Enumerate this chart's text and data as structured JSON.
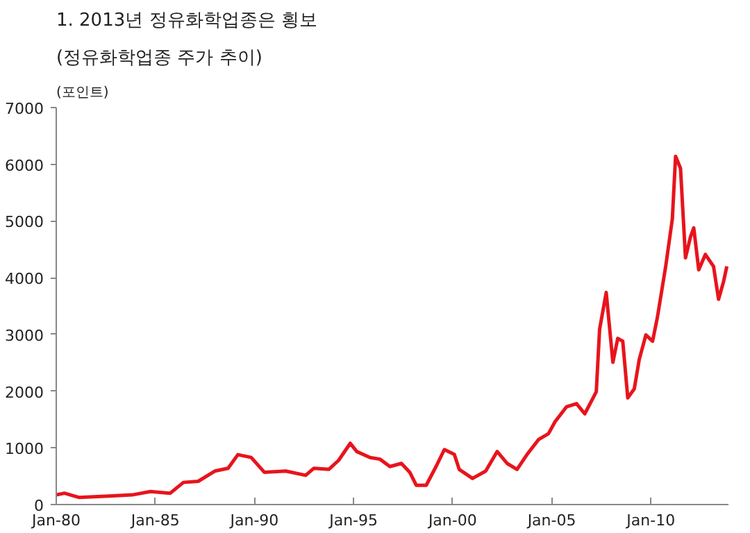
{
  "chart_data": {
    "type": "line",
    "title": "1. 2013년  정유화학업종은  횡보",
    "subtitle": "(정유화학업종  주가  추이)",
    "ylabel": "(포인트)",
    "x": [
      "1980-01",
      "1980-06",
      "1981-03",
      "1982-09",
      "1983-11",
      "1984-10",
      "1985-10",
      "1986-06",
      "1987-03",
      "1988-01",
      "1988-09",
      "1989-03",
      "1989-11",
      "1990-07",
      "1991-08",
      "1992-08",
      "1993-01",
      "1993-10",
      "1994-04",
      "1994-11",
      "1995-03",
      "1995-11",
      "1996-05",
      "1996-11",
      "1997-06",
      "1997-11",
      "1998-03",
      "1998-09",
      "1999-03",
      "1999-08",
      "2000-02",
      "2000-05",
      "2001-01",
      "2001-09",
      "2002-04",
      "2002-10",
      "2003-04",
      "2003-10",
      "2004-05",
      "2004-11",
      "2005-03",
      "2005-10",
      "2006-04",
      "2006-09",
      "2007-02",
      "2007-04",
      "2007-06",
      "2007-10",
      "2008-02",
      "2008-05",
      "2008-08",
      "2008-11",
      "2009-03",
      "2009-06",
      "2009-10",
      "2010-02",
      "2010-05",
      "2010-10",
      "2011-02",
      "2011-04",
      "2011-07",
      "2011-10",
      "2012-01",
      "2012-03",
      "2012-06",
      "2012-10",
      "2013-03",
      "2013-06",
      "2013-09",
      "2013-11"
    ],
    "series": [
      {
        "color": "#e8141c",
        "values": [
          170,
          200,
          125,
          150,
          170,
          230,
          200,
          390,
          410,
          590,
          640,
          880,
          830,
          570,
          590,
          515,
          640,
          620,
          780,
          1080,
          935,
          830,
          800,
          670,
          725,
          570,
          340,
          340,
          670,
          970,
          885,
          620,
          460,
          590,
          935,
          725,
          620,
          880,
          1145,
          1250,
          1460,
          1725,
          1780,
          1600,
          1880,
          1990,
          3090,
          3740,
          2510,
          2930,
          2880,
          1880,
          2040,
          2560,
          2990,
          2880,
          3300,
          4200,
          5040,
          6140,
          5930,
          4350,
          4720,
          4880,
          4140,
          4410,
          4200,
          3620,
          3930,
          4200
        ]
      }
    ],
    "ylim": [
      0,
      7000
    ],
    "yticks": [
      0,
      1000,
      2000,
      3000,
      4000,
      5000,
      6000,
      7000
    ],
    "xlim": [
      "1980-01",
      "2013-12"
    ],
    "xticks": [
      {
        "value": "1980-01",
        "label": "Jan-80"
      },
      {
        "value": "1985-01",
        "label": "Jan-85"
      },
      {
        "value": "1990-01",
        "label": "Jan-90"
      },
      {
        "value": "1995-01",
        "label": "Jan-95"
      },
      {
        "value": "2000-01",
        "label": "Jan-00"
      },
      {
        "value": "2005-01",
        "label": "Jan-05"
      },
      {
        "value": "2010-01",
        "label": "Jan-10"
      }
    ],
    "line_style": "solid"
  }
}
